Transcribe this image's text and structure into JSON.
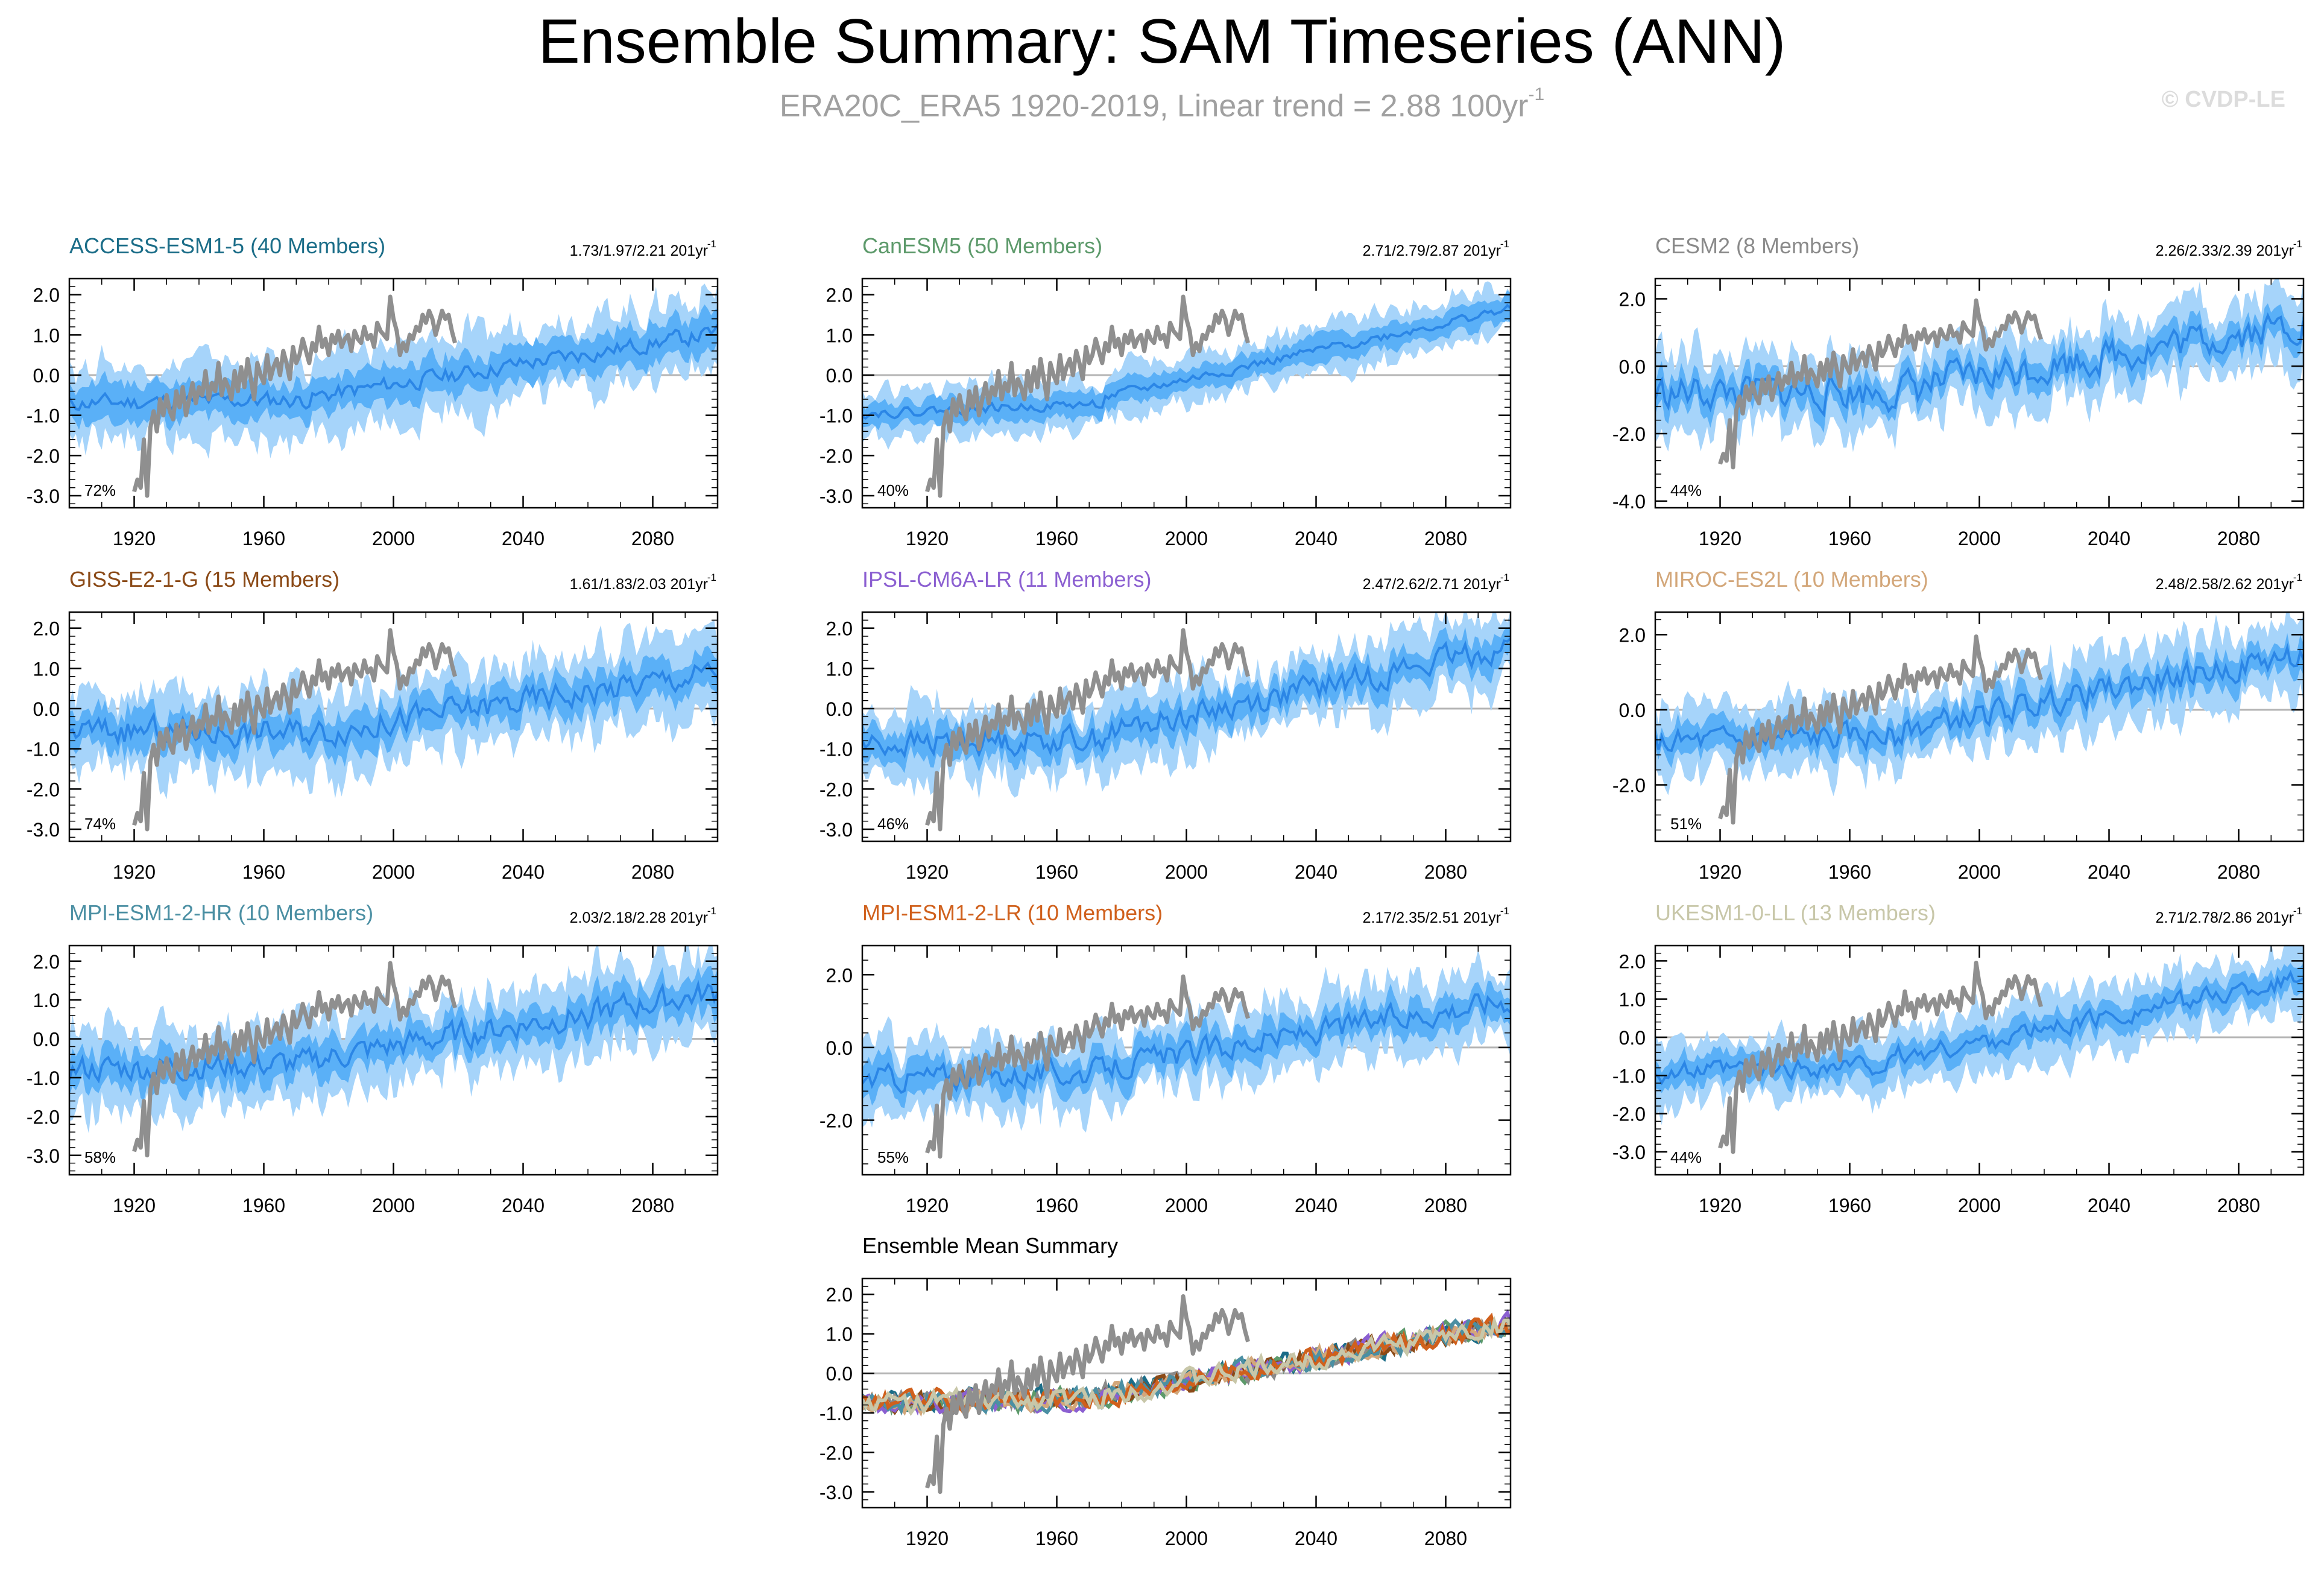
{
  "header": {
    "title": "Ensemble Summary: SAM Timeseries (ANN)",
    "subtitle": "ERA20C_ERA5 1920-2019, Linear trend = 2.88 100yr",
    "subtitle_sup": "-1",
    "copyright": "© CVDP-LE"
  },
  "colors": {
    "outer_band": "#a6d4fa",
    "inner_band": "#5ab0f7",
    "mean_line": "#2b86e6",
    "obs_line": "#8f8f8f",
    "zero_line": "#b4b4b4",
    "axis": "#000000"
  },
  "chart_data": [
    {
      "type": "area",
      "title": "ACCESS-ESM1-5 (40 Members)",
      "title_color": "#1b6d88",
      "trend": "1.73/1.97/2.21 201yr",
      "trend_sup": "-1",
      "pct": "72%",
      "xlim": [
        1900,
        2100
      ],
      "ylim": [
        -3.3,
        2.4
      ],
      "yticks": [
        -3,
        -2,
        -1,
        0,
        1,
        2
      ],
      "ytick_labels": [
        "-3.0",
        "-2.0",
        "-1.0",
        "0.0",
        "1.0",
        "2.0"
      ],
      "xticks": [
        1920,
        1960,
        2000,
        2040,
        2080
      ],
      "xtick_labels": [
        "1920",
        "1960",
        "2000",
        "2040",
        "2080"
      ],
      "mean_start": -0.7,
      "mean_end": 1.05,
      "mid_dip": -0.55,
      "noise": 0.18,
      "inner_half": 0.45,
      "outer_half": 0.95,
      "seed": 11
    },
    {
      "type": "area",
      "title": "CanESM5 (50 Members)",
      "title_color": "#5d9a6b",
      "trend": "2.71/2.79/2.87 201yr",
      "trend_sup": "-1",
      "pct": "40%",
      "xlim": [
        1900,
        2100
      ],
      "ylim": [
        -3.3,
        2.4
      ],
      "yticks": [
        -3,
        -2,
        -1,
        0,
        1,
        2
      ],
      "ytick_labels": [
        "-3.0",
        "-2.0",
        "-1.0",
        "0.0",
        "1.0",
        "2.0"
      ],
      "xticks": [
        1920,
        1960,
        2000,
        2040,
        2080
      ],
      "xtick_labels": [
        "1920",
        "1960",
        "2000",
        "2040",
        "2080"
      ],
      "mean_start": -0.95,
      "mean_end": 1.65,
      "mid_dip": -0.55,
      "noise": 0.1,
      "inner_half": 0.3,
      "outer_half": 0.6,
      "seed": 22
    },
    {
      "type": "area",
      "title": "CESM2 (8 Members)",
      "title_color": "#8a8a8a",
      "trend": "2.26/2.33/2.39 201yr",
      "trend_sup": "-1",
      "pct": "44%",
      "xlim": [
        1900,
        2100
      ],
      "ylim": [
        -4.2,
        2.6
      ],
      "yticks": [
        -4,
        -2,
        0,
        2
      ],
      "ytick_labels": [
        "-4.0",
        "-2.0",
        "0.0",
        "2.0"
      ],
      "xticks": [
        1920,
        1960,
        2000,
        2040,
        2080
      ],
      "xtick_labels": [
        "1920",
        "1960",
        "2000",
        "2040",
        "2080"
      ],
      "mean_start": -0.8,
      "mean_end": 1.3,
      "mid_dip": -0.7,
      "noise": 0.45,
      "inner_half": 0.45,
      "outer_half": 1.05,
      "seed": 33
    },
    {
      "type": "area",
      "title": "GISS-E2-1-G (15 Members)",
      "title_color": "#8b4a17",
      "trend": "1.61/1.83/2.03 201yr",
      "trend_sup": "-1",
      "pct": "74%",
      "xlim": [
        1900,
        2100
      ],
      "ylim": [
        -3.3,
        2.4
      ],
      "yticks": [
        -3,
        -2,
        -1,
        0,
        1,
        2
      ],
      "ytick_labels": [
        "-3.0",
        "-2.0",
        "-1.0",
        "0.0",
        "1.0",
        "2.0"
      ],
      "xticks": [
        1920,
        1960,
        2000,
        2040,
        2080
      ],
      "xtick_labels": [
        "1920",
        "1960",
        "2000",
        "2040",
        "2080"
      ],
      "mean_start": -0.55,
      "mean_end": 0.9,
      "mid_dip": -0.6,
      "noise": 0.3,
      "inner_half": 0.45,
      "outer_half": 1.0,
      "seed": 44
    },
    {
      "type": "area",
      "title": "IPSL-CM6A-LR (11 Members)",
      "title_color": "#8b5fd1",
      "trend": "2.47/2.62/2.71 201yr",
      "trend_sup": "-1",
      "pct": "46%",
      "xlim": [
        1900,
        2100
      ],
      "ylim": [
        -3.3,
        2.4
      ],
      "yticks": [
        -3,
        -2,
        -1,
        0,
        1,
        2
      ],
      "ytick_labels": [
        "-3.0",
        "-2.0",
        "-1.0",
        "0.0",
        "1.0",
        "2.0"
      ],
      "xticks": [
        1920,
        1960,
        2000,
        2040,
        2080
      ],
      "xtick_labels": [
        "1920",
        "1960",
        "2000",
        "2040",
        "2080"
      ],
      "mean_start": -0.9,
      "mean_end": 1.55,
      "mid_dip": -0.6,
      "noise": 0.28,
      "inner_half": 0.4,
      "outer_half": 0.9,
      "seed": 55
    },
    {
      "type": "area",
      "title": "MIROC-ES2L (10 Members)",
      "title_color": "#d3a77a",
      "trend": "2.48/2.58/2.62 201yr",
      "trend_sup": "-1",
      "pct": "51%",
      "xlim": [
        1900,
        2100
      ],
      "ylim": [
        -3.5,
        2.6
      ],
      "yticks": [
        -2,
        0,
        2
      ],
      "ytick_labels": [
        "-2.0",
        "0.0",
        "2.0"
      ],
      "xticks": [
        1920,
        1960,
        2000,
        2040,
        2080
      ],
      "xtick_labels": [
        "1920",
        "1960",
        "2000",
        "2040",
        "2080"
      ],
      "mean_start": -0.9,
      "mean_end": 1.5,
      "mid_dip": -0.55,
      "noise": 0.3,
      "inner_half": 0.4,
      "outer_half": 0.9,
      "seed": 66
    },
    {
      "type": "area",
      "title": "MPI-ESM1-2-HR (10 Members)",
      "title_color": "#4b8fa3",
      "trend": "2.03/2.18/2.28 201yr",
      "trend_sup": "-1",
      "pct": "58%",
      "xlim": [
        1900,
        2100
      ],
      "ylim": [
        -3.5,
        2.4
      ],
      "yticks": [
        -3,
        -2,
        -1,
        0,
        1,
        2
      ],
      "ytick_labels": [
        "-3.0",
        "-2.0",
        "-1.0",
        "0.0",
        "1.0",
        "2.0"
      ],
      "xticks": [
        1920,
        1960,
        2000,
        2040,
        2080
      ],
      "xtick_labels": [
        "1920",
        "1960",
        "2000",
        "2040",
        "2080"
      ],
      "mean_start": -0.8,
      "mean_end": 1.2,
      "mid_dip": -0.55,
      "noise": 0.3,
      "inner_half": 0.45,
      "outer_half": 1.0,
      "seed": 77
    },
    {
      "type": "area",
      "title": "MPI-ESM1-2-LR (10 Members)",
      "title_color": "#d0601c",
      "trend": "2.17/2.35/2.51 201yr",
      "trend_sup": "-1",
      "pct": "55%",
      "xlim": [
        1900,
        2100
      ],
      "ylim": [
        -3.5,
        2.8
      ],
      "yticks": [
        -2,
        0,
        2
      ],
      "ytick_labels": [
        "-2.0",
        "0.0",
        "2.0"
      ],
      "xticks": [
        1920,
        1960,
        2000,
        2040,
        2080
      ],
      "xtick_labels": [
        "1920",
        "1960",
        "2000",
        "2040",
        "2080"
      ],
      "mean_start": -0.85,
      "mean_end": 1.35,
      "mid_dip": -0.55,
      "noise": 0.3,
      "inner_half": 0.45,
      "outer_half": 1.0,
      "seed": 88
    },
    {
      "type": "area",
      "title": "UKESM1-0-LL (13 Members)",
      "title_color": "#c8c7a9",
      "trend": "2.71/2.78/2.86 201yr",
      "trend_sup": "-1",
      "pct": "44%",
      "xlim": [
        1900,
        2100
      ],
      "ylim": [
        -3.6,
        2.4
      ],
      "yticks": [
        -3,
        -2,
        -1,
        0,
        1,
        2
      ],
      "ytick_labels": [
        "-3.0",
        "-2.0",
        "-1.0",
        "0.0",
        "1.0",
        "2.0"
      ],
      "xticks": [
        1920,
        1960,
        2000,
        2040,
        2080
      ],
      "xtick_labels": [
        "1920",
        "1960",
        "2000",
        "2040",
        "2080"
      ],
      "mean_start": -0.95,
      "mean_end": 1.55,
      "mid_dip": -0.55,
      "noise": 0.22,
      "inner_half": 0.35,
      "outer_half": 0.8,
      "seed": 99
    },
    {
      "type": "line",
      "title": "Ensemble Mean Summary",
      "title_color": "#000000",
      "xlim": [
        1900,
        2100
      ],
      "ylim": [
        -3.4,
        2.4
      ],
      "yticks": [
        -3,
        -2,
        -1,
        0,
        1,
        2
      ],
      "ytick_labels": [
        "-3.0",
        "-2.0",
        "-1.0",
        "0.0",
        "1.0",
        "2.0"
      ],
      "xticks": [
        1920,
        1960,
        2000,
        2040,
        2080
      ],
      "xtick_labels": [
        "1920",
        "1960",
        "2000",
        "2040",
        "2080"
      ],
      "series_colors": [
        "#1b6d88",
        "#5d9a6b",
        "#8a8a8a",
        "#8b4a17",
        "#8b5fd1",
        "#d3a77a",
        "#4b8fa3",
        "#d0601c",
        "#c8c7a9"
      ]
    }
  ],
  "observations": {
    "name": "ERA20C_ERA5",
    "x": [
      1920,
      1921,
      1922,
      1923,
      1924,
      1925,
      1926,
      1927,
      1928,
      1929,
      1930,
      1931,
      1932,
      1933,
      1934,
      1935,
      1936,
      1937,
      1938,
      1939,
      1940,
      1941,
      1942,
      1943,
      1944,
      1945,
      1946,
      1947,
      1948,
      1949,
      1950,
      1951,
      1952,
      1953,
      1954,
      1955,
      1956,
      1957,
      1958,
      1959,
      1960,
      1961,
      1962,
      1963,
      1964,
      1965,
      1966,
      1967,
      1968,
      1969,
      1970,
      1971,
      1972,
      1973,
      1974,
      1975,
      1976,
      1977,
      1978,
      1979,
      1980,
      1981,
      1982,
      1983,
      1984,
      1985,
      1986,
      1987,
      1988,
      1989,
      1990,
      1991,
      1992,
      1993,
      1994,
      1995,
      1996,
      1997,
      1998,
      1999,
      2000,
      2001,
      2002,
      2003,
      2004,
      2005,
      2006,
      2007,
      2008,
      2009,
      2010,
      2011,
      2012,
      2013,
      2014,
      2015,
      2016,
      2017,
      2018,
      2019
    ],
    "y": [
      -2.9,
      -2.6,
      -2.8,
      -1.6,
      -3.0,
      -1.3,
      -0.9,
      -1.4,
      -0.6,
      -1.0,
      -0.5,
      -0.9,
      -1.1,
      -0.4,
      -0.8,
      -0.3,
      -1.0,
      -0.6,
      -0.2,
      -0.7,
      -0.3,
      -0.5,
      0.1,
      -0.6,
      -0.2,
      -0.4,
      0.3,
      -0.5,
      -0.1,
      -0.3,
      -0.6,
      0.1,
      -0.4,
      0.2,
      -0.3,
      0.4,
      -0.1,
      -0.6,
      0.3,
      0.0,
      -0.2,
      0.5,
      -0.1,
      0.2,
      0.4,
      0.0,
      0.6,
      0.3,
      -0.1,
      0.7,
      0.3,
      0.5,
      0.9,
      0.6,
      0.3,
      0.8,
      0.6,
      1.2,
      0.7,
      0.9,
      0.5,
      1.0,
      0.8,
      1.1,
      0.7,
      0.9,
      1.0,
      0.6,
      1.1,
      0.9,
      0.8,
      1.2,
      0.9,
      1.0,
      0.7,
      1.3,
      1.1,
      1.0,
      0.9,
      1.95,
      1.4,
      1.1,
      0.5,
      0.8,
      0.6,
      1.0,
      0.9,
      1.2,
      1.1,
      1.5,
      1.3,
      1.6,
      1.4,
      1.0,
      1.3,
      1.6,
      1.4,
      1.5,
      1.1,
      0.8
    ]
  }
}
